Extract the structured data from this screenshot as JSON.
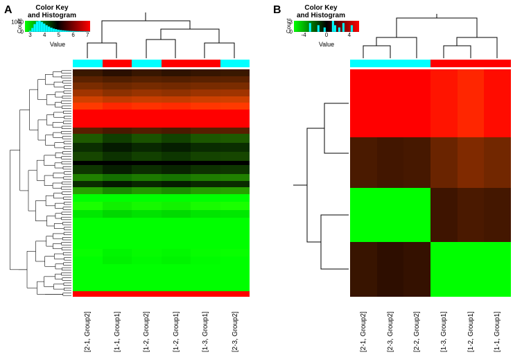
{
  "panelA": {
    "label": "A",
    "colorkey": {
      "title_line1": "Color Key",
      "title_line2": "and Histogram",
      "ylabel": "Count",
      "xlabel": "Value",
      "ymax_label": "1000",
      "yzero_label": "0",
      "ticks": [
        "3",
        "4",
        "5",
        "6",
        "7"
      ],
      "tick_positions_pct": [
        8,
        30,
        52,
        74,
        96
      ],
      "gradient_stops": [
        "#00ff00",
        "#000000",
        "#ff0000"
      ],
      "hist_color": "#00ffff",
      "hist_bins_pct": [
        10,
        35,
        70,
        95,
        100,
        90,
        75,
        60,
        48,
        38,
        30,
        25,
        20,
        16,
        14,
        12,
        10,
        9,
        8,
        7,
        6,
        6,
        5,
        5,
        4,
        4
      ],
      "hist_start_pct": 6
    },
    "group_bar": {
      "segments": [
        {
          "color": "#00ffff",
          "flex": 1
        },
        {
          "color": "#ff0000",
          "flex": 1
        },
        {
          "color": "#00ffff",
          "flex": 1
        },
        {
          "color": "#ff0000",
          "flex": 1
        },
        {
          "color": "#ff0000",
          "flex": 1
        },
        {
          "color": "#00ffff",
          "flex": 1
        }
      ]
    },
    "columns": [
      "[2-1, Group2]",
      "[1-1, Group1]",
      "[1-2, Group2]",
      "[1-2, Group1]",
      "[1-3, Group1]",
      "[2-3, Group2]"
    ],
    "heatmap": {
      "stripe_colors": [
        "#3a1800",
        "#2a0f00",
        "#381600",
        "#2e1200",
        "#361500",
        "#3a1800",
        "#5c2200",
        "#501e00",
        "#582100",
        "#541f00",
        "#5a2100",
        "#5c2200",
        "#7a2c00",
        "#6e2800",
        "#762b00",
        "#722900",
        "#782b00",
        "#7a2c00",
        "#a03400",
        "#8c3000",
        "#983300",
        "#903100",
        "#9c3300",
        "#a03400",
        "#d04000",
        "#c03a00",
        "#c83d00",
        "#c43c00",
        "#cc3f00",
        "#d04000",
        "#ff3a00",
        "#ff2800",
        "#ff3200",
        "#ff2c00",
        "#ff3600",
        "#ff3a00",
        "#ff0000",
        "#ff0000",
        "#ff0000",
        "#ff0000",
        "#ff0000",
        "#ff0000",
        "#ff0000",
        "#ff0000",
        "#ff0000",
        "#ff0000",
        "#ff0000",
        "#ff0000",
        "#581f00",
        "#481900",
        "#521d00",
        "#4a1a00",
        "#561e00",
        "#581f00",
        "#1e5a00",
        "#103e00",
        "#1a5200",
        "#124200",
        "#1c5600",
        "#1e5a00",
        "#0a2e00",
        "#041a00",
        "#082800",
        "#051e00",
        "#092b00",
        "#0a2e00",
        "#164600",
        "#0c3200",
        "#124000",
        "#0d3600",
        "#144300",
        "#164600",
        "#000000",
        "#000000",
        "#000000",
        "#000000",
        "#000000",
        "#000000",
        "#0e3600",
        "#061e00",
        "#0b2e00",
        "#082400",
        "#0d3200",
        "#0e3600",
        "#208000",
        "#147000",
        "#1c7a00",
        "#167400",
        "#1e7d00",
        "#208000",
        "#0a2c00",
        "#041800",
        "#082600",
        "#051c00",
        "#092900",
        "#0a2c00",
        "#28a000",
        "#1a8800",
        "#249600",
        "#1c8c00",
        "#269b00",
        "#28a000",
        "#00ff00",
        "#00ff00",
        "#00ff00",
        "#00ff00",
        "#00ff00",
        "#00ff00",
        "#1aff00",
        "#10f000",
        "#16f800",
        "#12f200",
        "#18fb00",
        "#1aff00",
        "#00e800",
        "#00d800",
        "#00e200",
        "#00da00",
        "#00e500",
        "#00e800",
        "#00ff00",
        "#00ff00",
        "#00ff00",
        "#00ff00",
        "#00ff00",
        "#00ff00",
        "#00ff00",
        "#00ff00",
        "#00ff00",
        "#00ff00",
        "#00ff00",
        "#00ff00",
        "#08ff00",
        "#00f600",
        "#05fb00",
        "#02f800",
        "#06fd00",
        "#08ff00",
        "#00ff00",
        "#00f200",
        "#00fa00",
        "#00f400",
        "#00fc00",
        "#00ff00",
        "#00ff00",
        "#00ff00",
        "#00ff00",
        "#00ff00",
        "#00ff00",
        "#00ff00",
        "#00ff00",
        "#00ff00",
        "#00ff00",
        "#00ff00",
        "#00ff00",
        "#00ff00",
        "#ff0000",
        "#ff0000",
        "#ff0000",
        "#ff0000",
        "#ff0000",
        "#ff0000"
      ],
      "stripe_heights": [
        12,
        12,
        12,
        12,
        12,
        12,
        16,
        16,
        12,
        16,
        16,
        16,
        8,
        16,
        12,
        12,
        12,
        14,
        14,
        14,
        28,
        28,
        14,
        14,
        20,
        28,
        10
      ],
      "ncols": 6
    }
  },
  "panelB": {
    "label": "B",
    "colorkey": {
      "title_line1": "Color Key",
      "title_line2": "and Histogram",
      "ylabel": "Count",
      "xlabel": "Value",
      "ymax_label": "3",
      "yzero_label": "0",
      "ticks": [
        "-4",
        "0",
        "4"
      ],
      "tick_positions_pct": [
        15,
        50,
        85
      ],
      "gradient_stops": [
        "#00ff00",
        "#000000",
        "#ff0000"
      ],
      "hist_color": "#00ffff",
      "hist_bins_pct": [
        0,
        0,
        0,
        0,
        0,
        0,
        80,
        0,
        0,
        0,
        60,
        0,
        0,
        40,
        0,
        0,
        0,
        100,
        60,
        0,
        40,
        0,
        80,
        0,
        0,
        0,
        60,
        0,
        0,
        0
      ],
      "hist_start_pct": 4
    },
    "group_bar": {
      "segments": [
        {
          "color": "#00ffff",
          "flex": 3
        },
        {
          "color": "#ff0000",
          "flex": 3
        }
      ]
    },
    "columns": [
      "[2-1, Group2]",
      "[2-3, Group2]",
      "[2-2, Group2]",
      "[1-3, Group1]",
      "[1-2, Group1]",
      "[1-1, Group1]"
    ],
    "heatmap": {
      "rows": [
        [
          "#ff0000",
          "#ff0000",
          "#ff0000",
          "#ff1400",
          "#ff2600",
          "#ff0c00"
        ],
        [
          "#4a1a00",
          "#421600",
          "#461800",
          "#6a2400",
          "#802a00",
          "#722700"
        ],
        [
          "#00ff00",
          "#00ff00",
          "#00ff00",
          "#3e1400",
          "#4a1900",
          "#441700"
        ],
        [
          "#381400",
          "#2e0e00",
          "#341100",
          "#00ff00",
          "#00ff00",
          "#00ff00"
        ]
      ],
      "row_heights_pct": [
        30,
        22,
        24,
        24
      ]
    }
  }
}
